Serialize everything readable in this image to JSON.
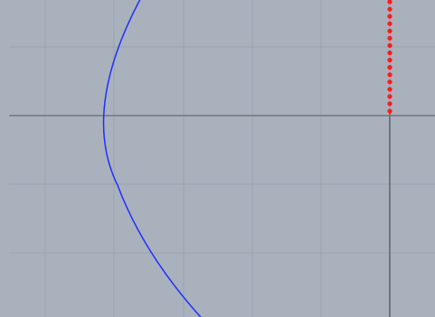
{
  "viewport": {
    "background_color": "#a9b1bd",
    "strip_color": "#9ca4b0",
    "grid": {
      "visible": true,
      "minor_line_color": "#9aa2ad",
      "major_line_color": "#7f8690"
    },
    "shapes": {
      "arc": {
        "kind": "curve",
        "color": "#1f2fff"
      },
      "dotted_path": {
        "kind": "dotted-vertical",
        "color": "#ff1a1a",
        "point_count": 16
      },
      "axis_line": {
        "kind": "solid-vertical",
        "color": "#6f7680"
      }
    }
  }
}
